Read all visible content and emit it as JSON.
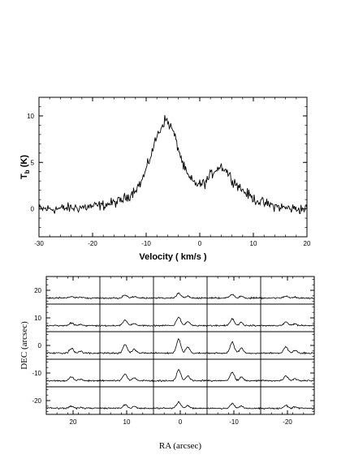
{
  "chart_data": [
    {
      "type": "line",
      "title": "",
      "xlabel": "Velocity ( km/s )",
      "ylabel_main": "T",
      "ylabel_sub": "b",
      "ylabel_unit": " (K)",
      "xlim": [
        -30,
        20
      ],
      "ylim": [
        -3,
        12
      ],
      "x_ticks": [
        -30,
        -20,
        -10,
        0,
        10,
        20
      ],
      "y_ticks": [
        0,
        5,
        10
      ],
      "series": [
        {
          "x": [
            -30,
            -27,
            -24,
            -21,
            -18,
            -15,
            -13,
            -11,
            -10,
            -9,
            -8,
            -7,
            -6.5,
            -6,
            -5,
            -4,
            -3,
            -2,
            -1,
            0,
            1,
            2,
            3,
            4,
            5,
            6,
            8,
            10,
            12,
            14,
            16,
            18,
            20
          ],
          "values": [
            0,
            0,
            0.1,
            0.2,
            0.4,
            0.8,
            1.5,
            2.8,
            4.2,
            6.0,
            7.8,
            9.0,
            9.6,
            9.4,
            8.4,
            6.5,
            4.5,
            3.3,
            2.8,
            2.6,
            2.8,
            3.6,
            4.3,
            4.6,
            4.1,
            3.2,
            2.0,
            1.1,
            0.6,
            0.3,
            0.1,
            0.0,
            0.0
          ]
        }
      ]
    },
    {
      "type": "line",
      "title": "",
      "xlabel": "RA (arcsec)",
      "ylabel": "DEC (arcsec)",
      "xlim": [
        25,
        -25
      ],
      "ylim": [
        -25,
        25
      ],
      "x_ticks": [
        20,
        10,
        0,
        -10,
        -20
      ],
      "y_ticks": [
        20,
        10,
        0,
        -10,
        -20
      ],
      "ra_offsets": [
        20,
        10,
        0,
        -10,
        -20
      ],
      "dec_offsets": [
        20,
        10,
        0,
        -10,
        -20
      ],
      "spectrum_scale": [
        0.3,
        0.55,
        0.9,
        0.7,
        0.4
      ]
    }
  ]
}
